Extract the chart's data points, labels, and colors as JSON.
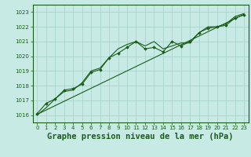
{
  "title": "Graphe pression niveau de la mer (hPa)",
  "background_color": "#c8eae5",
  "grid_color": "#aad4cc",
  "line_color": "#1a5c1a",
  "marker_color": "#1a5c1a",
  "xlim": [
    -0.5,
    23.5
  ],
  "ylim": [
    1015.5,
    1023.5
  ],
  "yticks": [
    1016,
    1017,
    1018,
    1019,
    1020,
    1021,
    1022,
    1023
  ],
  "xticks": [
    0,
    1,
    2,
    3,
    4,
    5,
    6,
    7,
    8,
    9,
    10,
    11,
    12,
    13,
    14,
    15,
    16,
    17,
    18,
    19,
    20,
    21,
    22,
    23
  ],
  "series1_x": [
    0,
    1,
    2,
    3,
    4,
    5,
    6,
    7,
    8,
    9,
    10,
    11,
    12,
    13,
    14,
    15,
    16,
    17,
    18,
    19,
    20,
    21,
    22,
    23
  ],
  "series1_y": [
    1016.1,
    1016.8,
    1017.1,
    1017.7,
    1017.8,
    1018.1,
    1018.9,
    1019.1,
    1019.9,
    1020.2,
    1020.6,
    1021.0,
    1020.5,
    1020.6,
    1020.3,
    1021.0,
    1020.7,
    1021.0,
    1021.6,
    1021.9,
    1022.0,
    1022.1,
    1022.6,
    1022.8
  ],
  "series2_x": [
    0,
    1,
    2,
    3,
    4,
    5,
    6,
    7,
    8,
    9,
    10,
    11,
    12,
    13,
    14,
    15,
    16,
    17,
    18,
    19,
    20,
    21,
    22,
    23
  ],
  "series2_y": [
    1016.0,
    1016.5,
    1017.1,
    1017.6,
    1017.7,
    1018.2,
    1019.0,
    1019.2,
    1019.9,
    1020.5,
    1020.8,
    1021.0,
    1020.7,
    1021.0,
    1020.5,
    1020.7,
    1020.9,
    1020.9,
    1021.6,
    1022.0,
    1022.0,
    1022.2,
    1022.7,
    1022.9
  ],
  "series3_x": [
    0,
    23
  ],
  "series3_y": [
    1016.05,
    1022.85
  ],
  "title_fontsize": 7.5,
  "tick_fontsize": 5.0
}
